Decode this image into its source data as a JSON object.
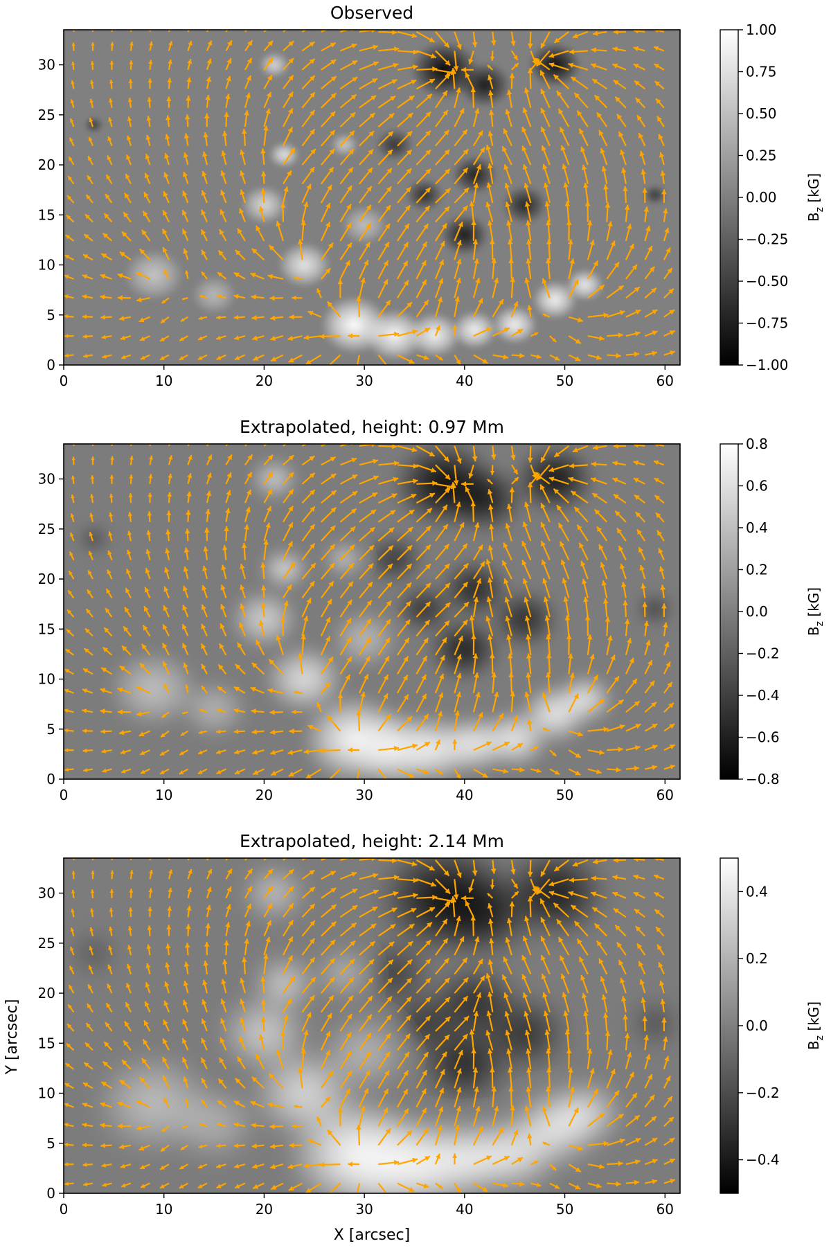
{
  "figure": {
    "xlabel": "X [arcsec]",
    "ylabel": "Y [arcsec]"
  },
  "colors": {
    "arrow": "#ffa500",
    "axis": "#000000",
    "background": "#ffffff"
  },
  "chart_data": [
    {
      "type": "heatmap",
      "title": "Observed",
      "xlim": [
        0,
        61.5
      ],
      "ylim": [
        0,
        33.5
      ],
      "xticks": [
        0,
        10,
        20,
        30,
        40,
        50,
        60
      ],
      "yticks": [
        0,
        5,
        10,
        15,
        20,
        25,
        30
      ],
      "xlabel": "",
      "ylabel": "",
      "colorbar": {
        "label": "B_z [kG]",
        "label_main": "B",
        "label_sub": "z",
        "label_unit": " [kG]",
        "vmin": -1.0,
        "vmax": 1.0,
        "ticks": [
          "−1.00",
          "−0.75",
          "−0.50",
          "−0.25",
          "0.00",
          "0.25",
          "0.50",
          "0.75",
          "1.00"
        ],
        "tick_values": [
          -1.0,
          -0.75,
          -0.5,
          -0.25,
          0.0,
          0.25,
          0.5,
          0.75,
          1.0
        ],
        "colormap": "gray"
      },
      "overlay": "horizontal field vectors (orange arrows)"
    },
    {
      "type": "heatmap",
      "title": "Extrapolated, height: 0.97 Mm",
      "xlim": [
        0,
        61.5
      ],
      "ylim": [
        0,
        33.5
      ],
      "xticks": [
        0,
        10,
        20,
        30,
        40,
        50,
        60
      ],
      "yticks": [
        0,
        5,
        10,
        15,
        20,
        25,
        30
      ],
      "xlabel": "",
      "ylabel": "",
      "colorbar": {
        "label": "B_z [kG]",
        "label_main": "B",
        "label_sub": "z",
        "label_unit": " [kG]",
        "vmin": -0.8,
        "vmax": 0.8,
        "ticks": [
          "−0.8",
          "−0.6",
          "−0.4",
          "−0.2",
          "0.0",
          "0.2",
          "0.4",
          "0.6",
          "0.8"
        ],
        "tick_values": [
          -0.8,
          -0.6,
          -0.4,
          -0.2,
          0.0,
          0.2,
          0.4,
          0.6,
          0.8
        ],
        "colormap": "gray"
      },
      "overlay": "horizontal field vectors (orange arrows)"
    },
    {
      "type": "heatmap",
      "title": "Extrapolated, height: 2.14 Mm",
      "xlim": [
        0,
        61.5
      ],
      "ylim": [
        0,
        33.5
      ],
      "xticks": [
        0,
        10,
        20,
        30,
        40,
        50,
        60
      ],
      "yticks": [
        0,
        5,
        10,
        15,
        20,
        25,
        30
      ],
      "xlabel": "X [arcsec]",
      "ylabel": "Y [arcsec]",
      "colorbar": {
        "label": "B_z [kG]",
        "label_main": "B",
        "label_sub": "z",
        "label_unit": " [kG]",
        "vmin": -0.5,
        "vmax": 0.5,
        "ticks": [
          "−0.4",
          "−0.2",
          "0.0",
          "0.2",
          "0.4"
        ],
        "tick_values": [
          -0.4,
          -0.2,
          0.0,
          0.2,
          0.4
        ],
        "colormap": "gray"
      },
      "overlay": "horizontal field vectors (orange arrows)"
    }
  ]
}
